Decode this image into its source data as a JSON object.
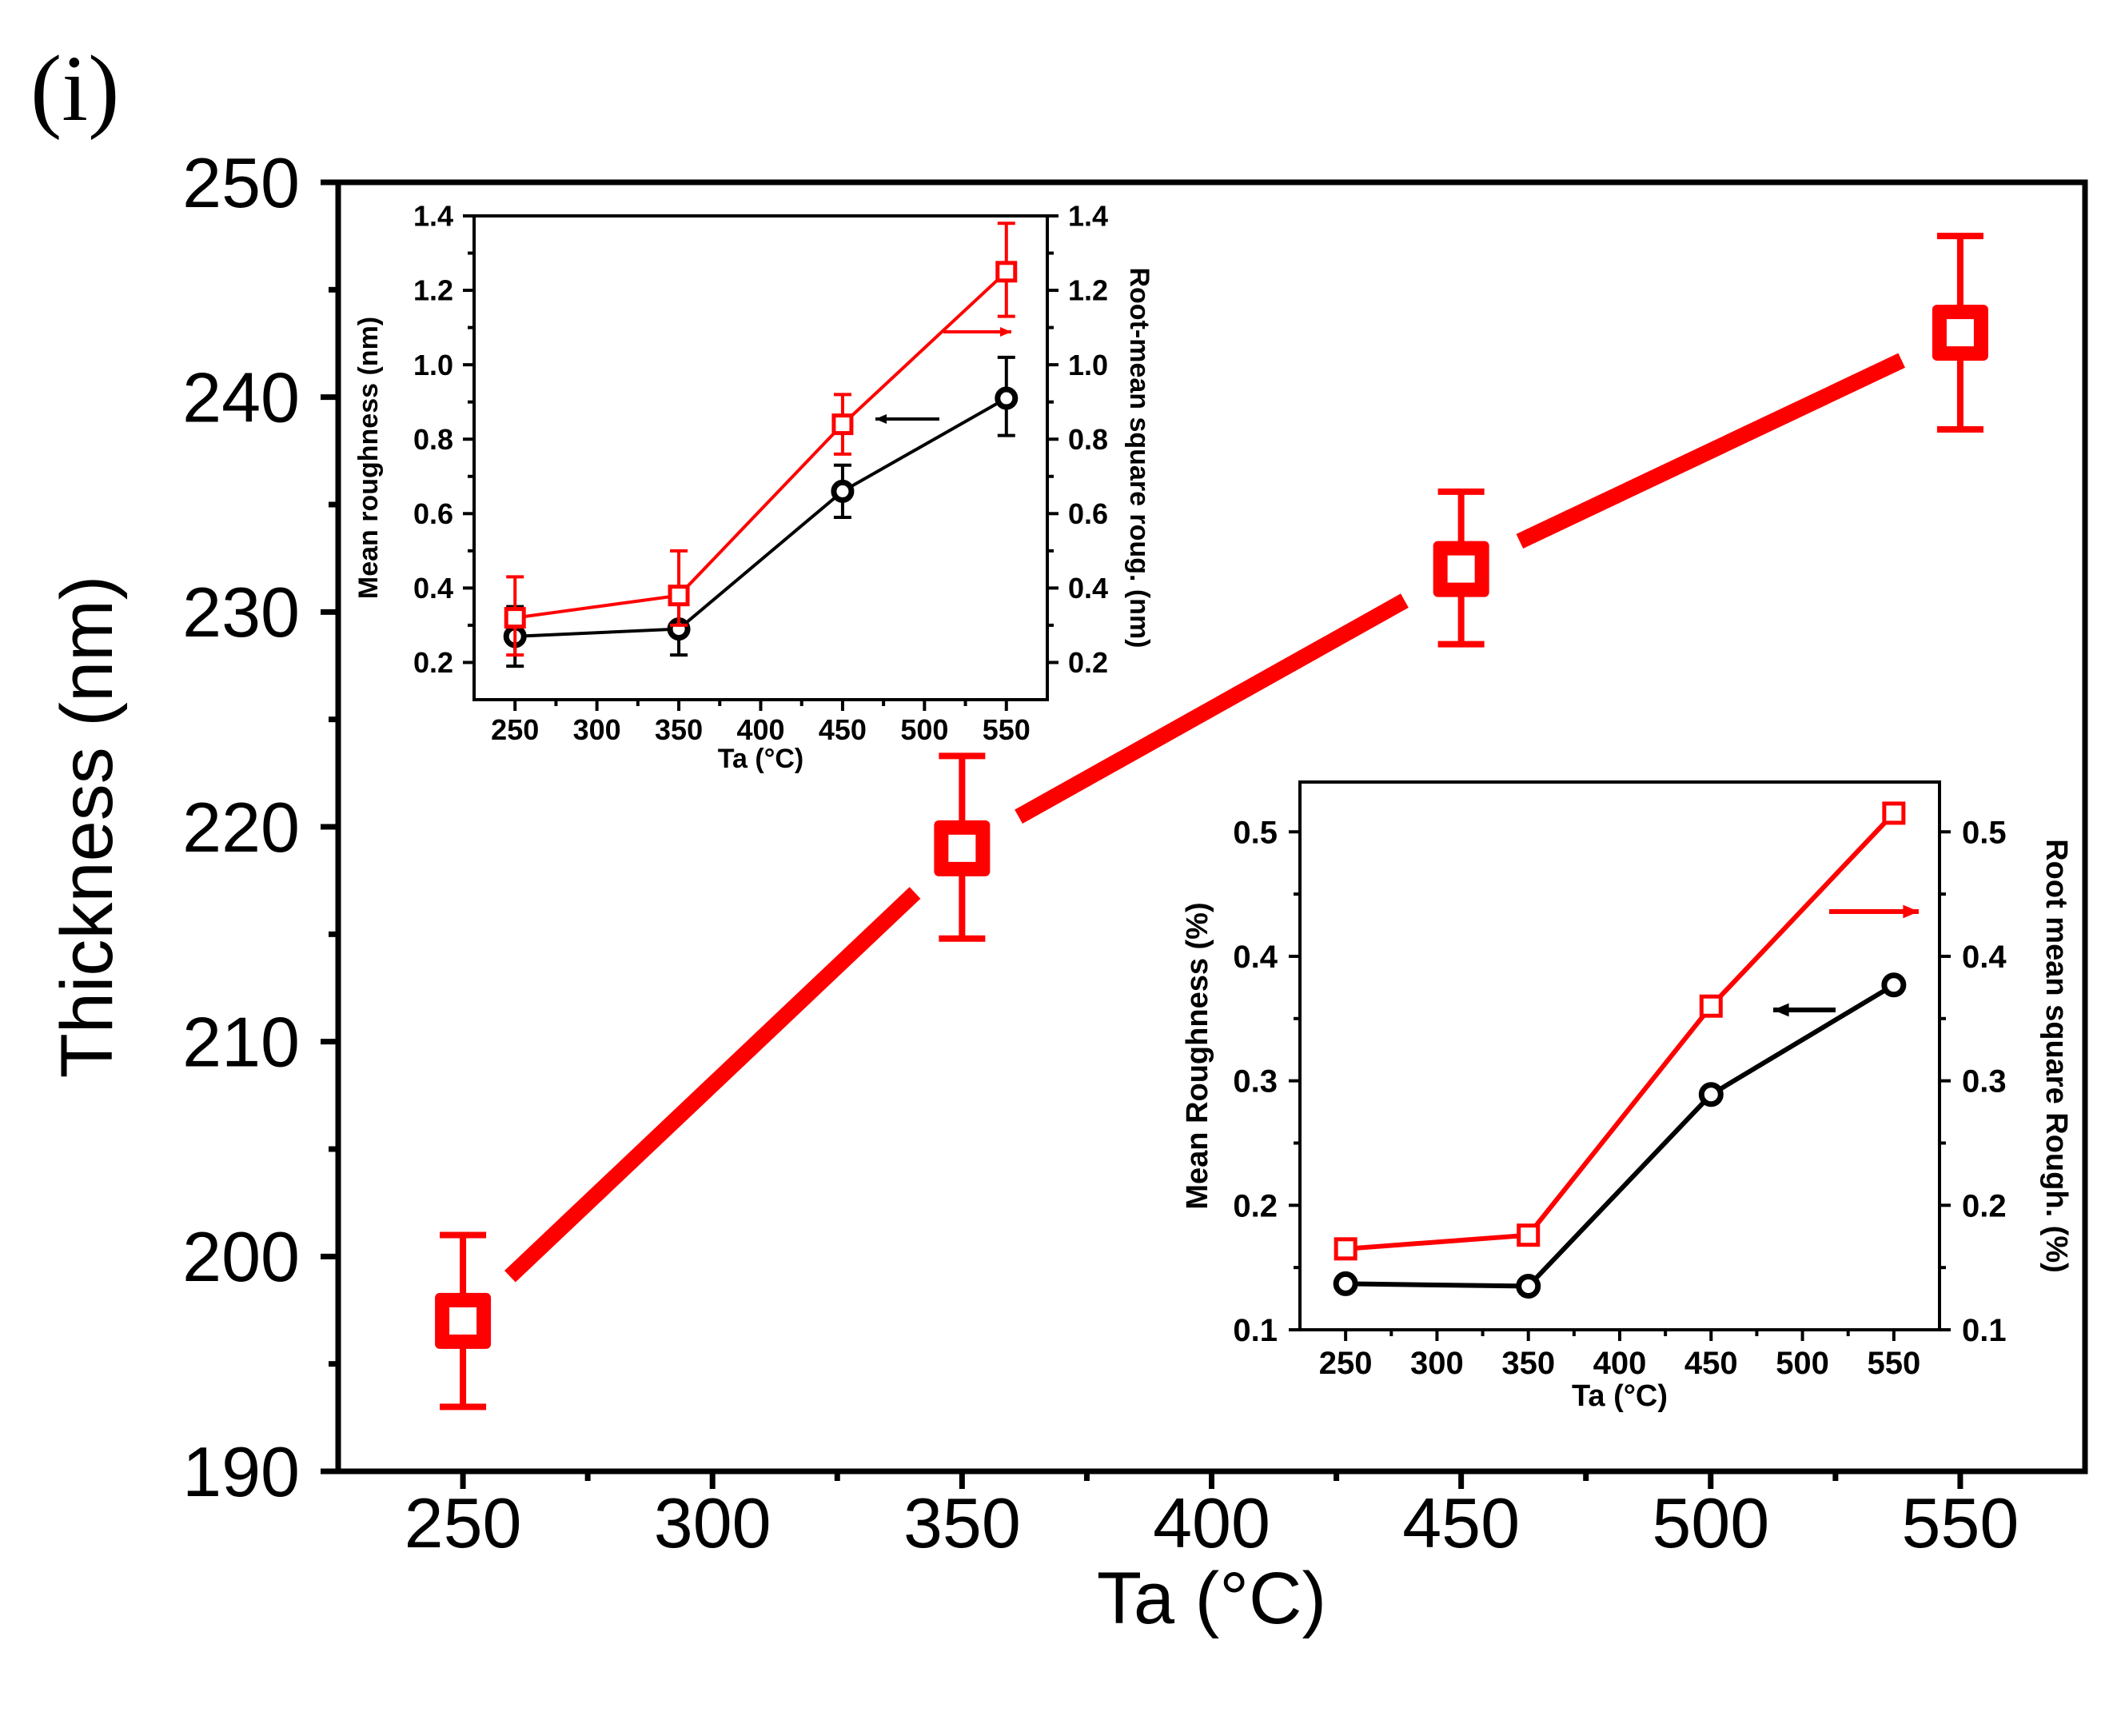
{
  "panel_label": "(i)",
  "colors": {
    "red": "#ff0000",
    "black": "#000000",
    "axis": "#000000"
  },
  "chart_data": [
    {
      "id": "main",
      "type": "line",
      "title": "",
      "xlabel": "Ta (°C)",
      "ylabel": "Thickness (nm)",
      "xlim": [
        225,
        575
      ],
      "ylim": [
        190,
        250
      ],
      "xticks": [
        250,
        300,
        350,
        400,
        450,
        500,
        550
      ],
      "yticks": [
        190,
        200,
        210,
        220,
        230,
        240,
        250
      ],
      "xtick_labels": [
        "250",
        "300",
        "350",
        "400",
        "450",
        "500",
        "550"
      ],
      "ytick_labels": [
        "190",
        "200",
        "210",
        "220",
        "230",
        "240",
        "250"
      ],
      "series": [
        {
          "name": "Thickness",
          "color": "#ff0000",
          "marker": "square",
          "x": [
            250,
            350,
            450,
            550
          ],
          "y": [
            197,
            219,
            232,
            243
          ],
          "err_low": [
            193,
            214.8,
            228.5,
            238.5
          ],
          "err_high": [
            201,
            223.3,
            235.6,
            247.5
          ]
        }
      ]
    },
    {
      "id": "inset1",
      "type": "line",
      "xlabel": "Ta (°C)",
      "ylabel": "Mean roughness (nm)",
      "ylabel_right": "Root-mean square roug. (nm)",
      "xlim": [
        225,
        575
      ],
      "ylim": [
        0.1,
        1.4
      ],
      "xticks": [
        250,
        300,
        350,
        400,
        450,
        500,
        550
      ],
      "yticks": [
        0.2,
        0.4,
        0.6,
        0.8,
        1.0,
        1.2,
        1.4
      ],
      "xtick_labels": [
        "250",
        "300",
        "350",
        "400",
        "450",
        "500",
        "550"
      ],
      "ytick_labels": [
        "0.2",
        "0.4",
        "0.6",
        "0.8",
        "1.0",
        "1.2",
        "1.4"
      ],
      "ytick_labels_right": [
        "0.2",
        "0.4",
        "0.6",
        "0.8",
        "1.0",
        "1.2",
        "1.4"
      ],
      "series": [
        {
          "name": "Mean roughness",
          "color": "#000000",
          "marker": "circle",
          "axis": "left",
          "x": [
            250,
            350,
            450,
            550
          ],
          "y": [
            0.27,
            0.29,
            0.66,
            0.91
          ],
          "err_low": [
            0.19,
            0.22,
            0.59,
            0.81
          ],
          "err_high": [
            0.35,
            0.36,
            0.73,
            1.02
          ]
        },
        {
          "name": "Root-mean square roughness",
          "color": "#ff0000",
          "marker": "square",
          "axis": "right",
          "x": [
            250,
            350,
            450,
            550
          ],
          "y": [
            0.32,
            0.38,
            0.84,
            1.25
          ],
          "err_low": [
            0.22,
            0.3,
            0.76,
            1.13
          ],
          "err_high": [
            0.43,
            0.5,
            0.92,
            1.38
          ]
        }
      ]
    },
    {
      "id": "inset2",
      "type": "line",
      "xlabel": "Ta (°C)",
      "ylabel": "Mean Roughness (%)",
      "ylabel_right": "Root mean square Rough. (%)",
      "xlim": [
        225,
        575
      ],
      "ylim": [
        0.1,
        0.54
      ],
      "xticks": [
        250,
        300,
        350,
        400,
        450,
        500,
        550
      ],
      "yticks": [
        0.1,
        0.2,
        0.3,
        0.4,
        0.5
      ],
      "xtick_labels": [
        "250",
        "300",
        "350",
        "400",
        "450",
        "500",
        "550"
      ],
      "ytick_labels": [
        "0.1",
        "0.2",
        "0.3",
        "0.4",
        "0.5"
      ],
      "ytick_labels_right": [
        "0.1",
        "0.2",
        "0.3",
        "0.4",
        "0.5"
      ],
      "series": [
        {
          "name": "Mean Roughness",
          "color": "#000000",
          "marker": "circle",
          "axis": "left",
          "x": [
            250,
            350,
            450,
            550
          ],
          "y": [
            0.137,
            0.135,
            0.289,
            0.377
          ]
        },
        {
          "name": "Root mean square Roughness",
          "color": "#ff0000",
          "marker": "square",
          "axis": "right",
          "x": [
            250,
            350,
            450,
            550
          ],
          "y": [
            0.165,
            0.176,
            0.36,
            0.515
          ]
        }
      ]
    }
  ]
}
